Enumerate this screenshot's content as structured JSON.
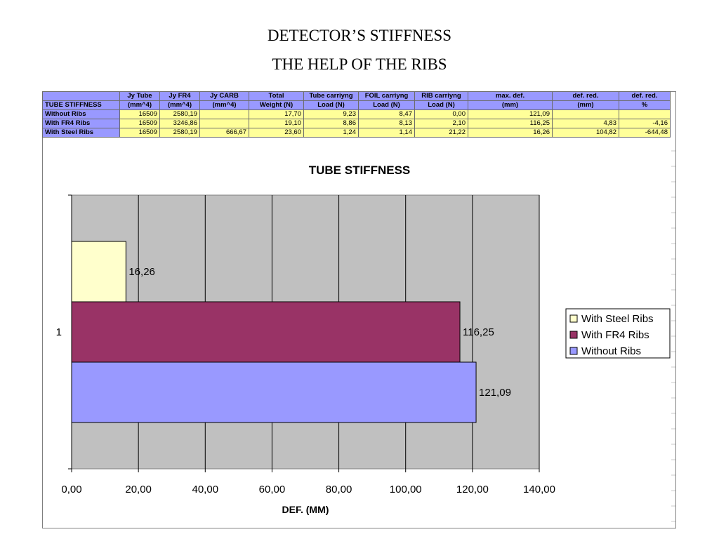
{
  "slide": {
    "title_line1": "DETECTOR’S STIFFNESS",
    "title_line2": "THE HELP OF THE RIBS"
  },
  "table": {
    "header_row1": [
      "",
      "Jy Tube",
      "Jy FR4",
      "Jy CARB",
      "Total",
      "Tube carriyng",
      "FOIL carriyng",
      "RIB carriyng",
      "max. def.",
      "def. red.",
      "def. red."
    ],
    "header_row2": [
      "TUBE STIFFNESS",
      "(mm^4)",
      "(mm^4)",
      "(mm^4)",
      "Weight (N)",
      "Load (N)",
      "Load (N)",
      "Load (N)",
      "(mm)",
      "(mm)",
      "%"
    ],
    "rows": [
      [
        "Without Ribs",
        "16509",
        "2580,19",
        "",
        "17,70",
        "9,23",
        "8,47",
        "0,00",
        "121,09",
        "",
        ""
      ],
      [
        "With FR4 Ribs",
        "16509",
        "3246,86",
        "",
        "19,10",
        "8,86",
        "8,13",
        "2,10",
        "116,25",
        "4,83",
        "-4,16"
      ],
      [
        "With Steel Ribs",
        "16509",
        "2580,19",
        "666,67",
        "23,60",
        "1,24",
        "1,14",
        "21,22",
        "16,26",
        "104,82",
        "-644,48"
      ]
    ]
  },
  "chart_data": {
    "type": "bar",
    "orientation": "horizontal",
    "title": "TUBE STIFFNESS",
    "xlabel": "DEF. (MM)",
    "ylabel": "",
    "categories": [
      "1"
    ],
    "xlim": [
      0,
      140
    ],
    "x_ticks": [
      "0,00",
      "20,00",
      "40,00",
      "60,00",
      "80,00",
      "100,00",
      "120,00",
      "140,00"
    ],
    "x_tick_values": [
      0,
      20,
      40,
      60,
      80,
      100,
      120,
      140
    ],
    "grid": "vertical",
    "legend_position": "right",
    "series": [
      {
        "name": "With Steel Ribs",
        "values": [
          16.26
        ],
        "label": "16,26",
        "color": "#ffffcc"
      },
      {
        "name": "With FR4 Ribs",
        "values": [
          116.25
        ],
        "label": "116,25",
        "color": "#993366"
      },
      {
        "name": "Without Ribs",
        "values": [
          121.09
        ],
        "label": "121,09",
        "color": "#9999ff"
      }
    ],
    "plot_background": "#c0c0c0"
  }
}
